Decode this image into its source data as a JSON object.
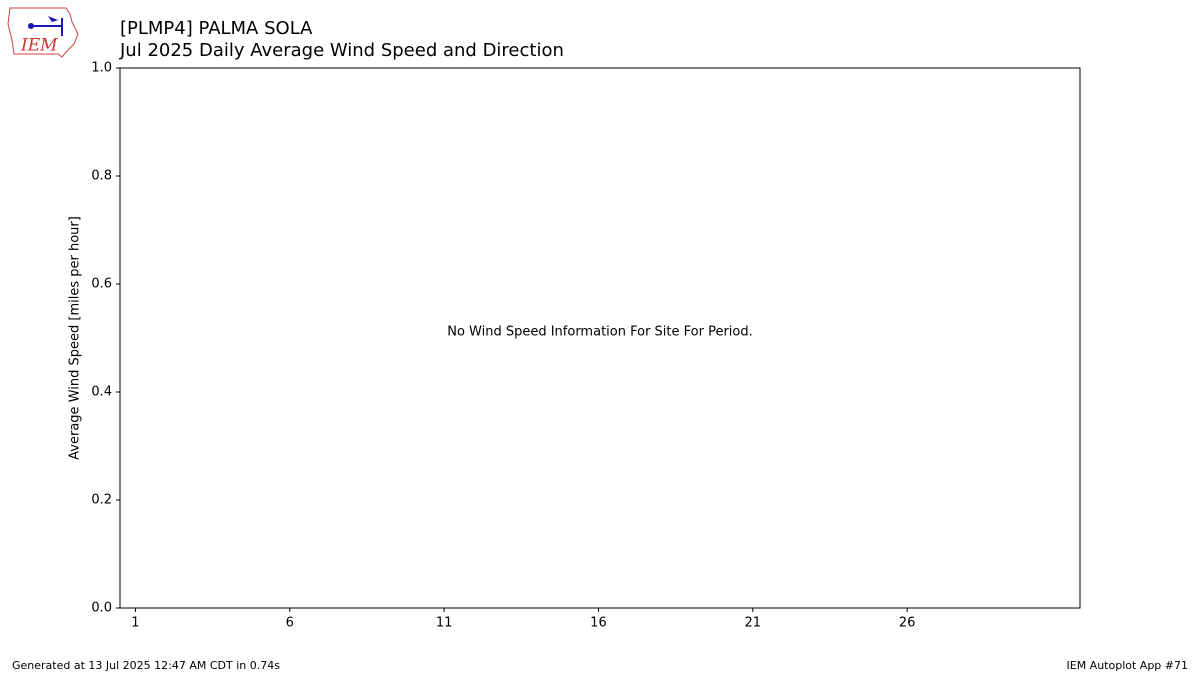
{
  "chart_data": {
    "type": "bar",
    "title": "[PLMP4] PALMA SOLA",
    "subtitle": "Jul 2025 Daily Average Wind Speed and Direction",
    "ylabel": "Average Wind Speed [miles per hour]",
    "annotation": "No Wind Speed Information For Site For Period.",
    "series": [],
    "xlim": [
      0.5,
      31.6
    ],
    "xticks": [
      1,
      6,
      11,
      16,
      21,
      26
    ],
    "ylim": [
      0,
      1
    ],
    "yticks": [
      {
        "value": 0,
        "label": "0.0"
      },
      {
        "value": 0.2,
        "label": "0.2"
      },
      {
        "value": 0.4,
        "label": "0.4"
      },
      {
        "value": 0.6,
        "label": "0.6"
      },
      {
        "value": 0.8,
        "label": "0.8"
      },
      {
        "value": 1,
        "label": "1.0"
      }
    ],
    "grid": false
  },
  "logo_text": "IEM",
  "footer": {
    "left": "Generated at 13 Jul 2025 12:47 AM CDT in 0.74s",
    "right": "IEM Autoplot App #71"
  }
}
